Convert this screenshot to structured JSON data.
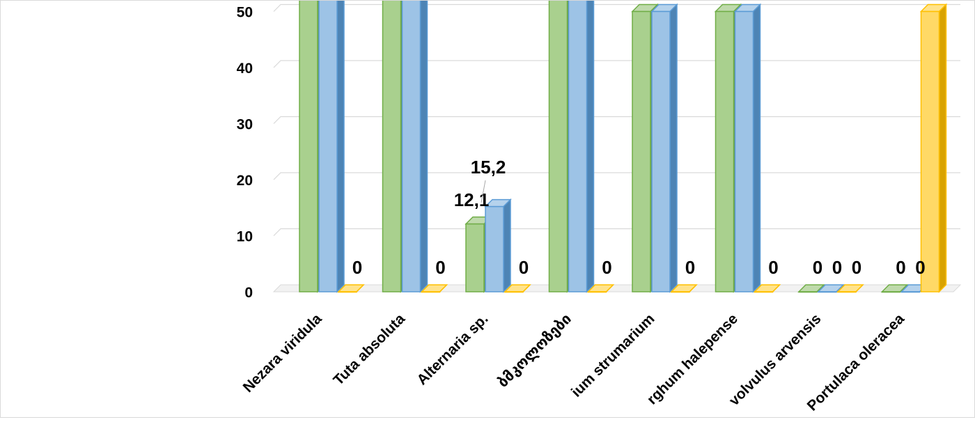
{
  "chart_data": {
    "type": "bar",
    "categories": [
      "Nezara viridula",
      "Tuta absoluta",
      "Alternaria sp.",
      "ბმკოლოზები",
      "ium strumarium",
      "rghum halepense",
      "volvulus arvensis",
      "Portulaca oleracea"
    ],
    "series": [
      {
        "color": "#70ad47",
        "values": [
          55,
          55,
          12.1,
          55,
          50,
          50,
          0,
          0
        ]
      },
      {
        "color": "#5b9bd5",
        "values": [
          55,
          55,
          15.2,
          55,
          50,
          50,
          0,
          0
        ]
      },
      {
        "color": "#ffc000",
        "values": [
          0,
          0,
          0,
          0,
          0,
          0,
          0,
          50
        ]
      }
    ],
    "data_labels": [
      {
        "category": 0,
        "series": 2,
        "text": "0"
      },
      {
        "category": 1,
        "series": 2,
        "text": "0"
      },
      {
        "category": 2,
        "series": 0,
        "text": "12,1"
      },
      {
        "category": 2,
        "series": 1,
        "text": "15,2"
      },
      {
        "category": 2,
        "series": 2,
        "text": "0"
      },
      {
        "category": 3,
        "series": 2,
        "text": "0"
      },
      {
        "category": 4,
        "series": 2,
        "text": "0"
      },
      {
        "category": 5,
        "series": 2,
        "text": "0"
      },
      {
        "category": 6,
        "series": 0,
        "text": "0"
      },
      {
        "category": 6,
        "series": 1,
        "text": "0"
      },
      {
        "category": 6,
        "series": 2,
        "text": "0"
      },
      {
        "category": 7,
        "series": 0,
        "text": "0"
      },
      {
        "category": 7,
        "series": 1,
        "text": "0"
      }
    ],
    "y_ticks": [
      "0",
      "10",
      "20",
      "30",
      "40",
      "50"
    ],
    "ylim": [
      0,
      55
    ],
    "grid": true,
    "bar_style": "3d-clustered"
  }
}
